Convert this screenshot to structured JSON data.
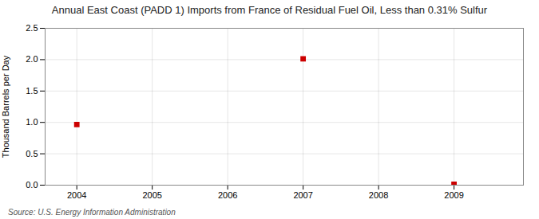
{
  "chart_data": {
    "type": "scatter",
    "title": "Annual East Coast (PADD 1) Imports from France of Residual Fuel Oil, Less than 0.31% Sulfur",
    "ylabel": "Thousand Barrels per Day",
    "source": "Source: U.S. Energy Information Administration",
    "x": [
      2004,
      2007,
      2009
    ],
    "values": [
      0.967,
      2.014,
      0.014
    ],
    "color": "#cc0000",
    "marker": "square",
    "xlim": [
      2003.58,
      2009.92
    ],
    "xticks": [
      2004,
      2005,
      2006,
      2007,
      2008,
      2009
    ],
    "ylim": [
      0,
      2.5
    ],
    "yticks": [
      {
        "value": 0,
        "label": "0.0"
      },
      0.5,
      {
        "value": 1,
        "label": "1.0"
      },
      1.5,
      {
        "value": 2,
        "label": "2.0"
      },
      2.5
    ],
    "grid": true
  }
}
